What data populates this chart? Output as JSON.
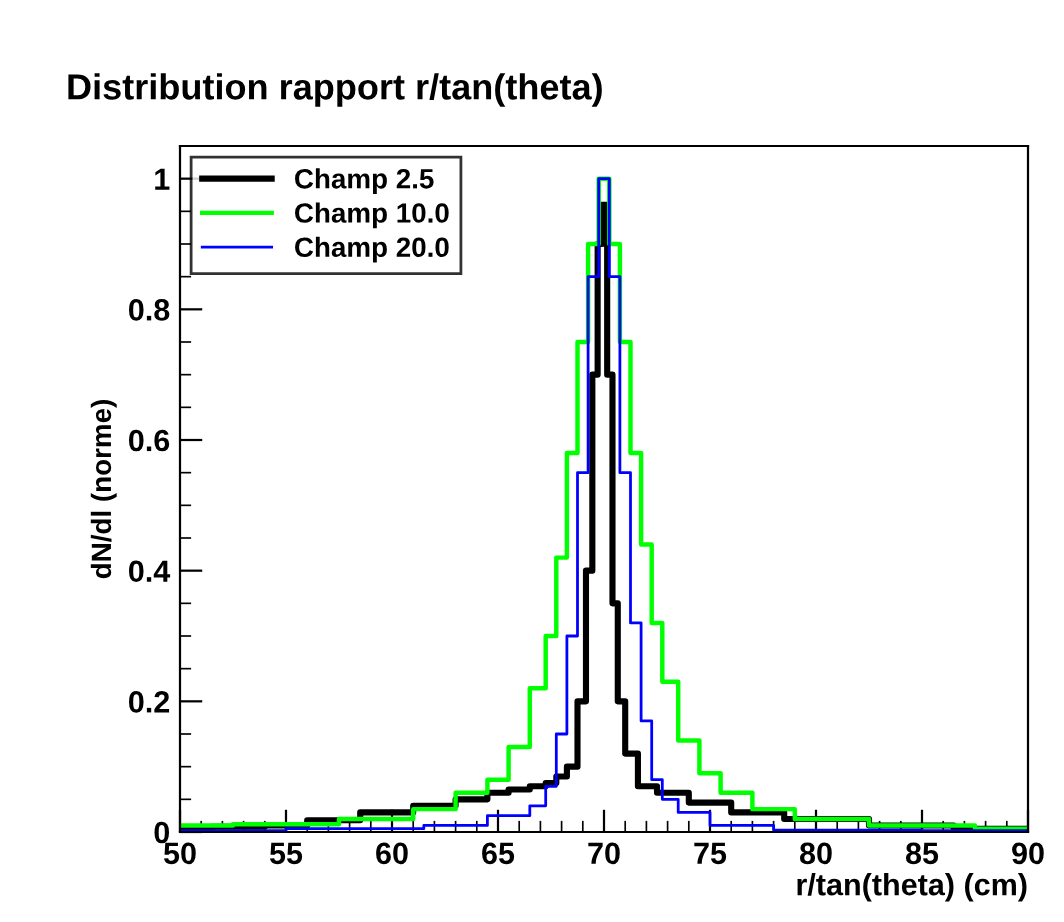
{
  "chart_data": {
    "type": "step",
    "title": "Distribution rapport r/tan(theta)",
    "xlabel": "r/tan(theta) (cm)",
    "ylabel": "dN/dl (norme)",
    "xlim": [
      50,
      90
    ],
    "xticks": [
      50,
      55,
      60,
      65,
      70,
      75,
      80,
      85,
      90
    ],
    "ylim": [
      0,
      1.05
    ],
    "yticks": [
      0,
      0.2,
      0.4,
      0.6,
      0.8,
      1
    ],
    "grid": false,
    "legend": "top left",
    "series": [
      {
        "name": "Champ 2.5",
        "color": "#000000",
        "x": [
          50,
          53,
          55,
          57,
          60,
          62,
          64,
          65,
          66,
          67,
          67.5,
          68,
          68.5,
          69,
          69.3,
          69.6,
          69.8,
          70,
          70.3,
          70.5,
          70.8,
          71.2,
          72,
          73,
          75,
          77,
          80,
          85,
          88,
          90
        ],
        "values": [
          0.005,
          0.008,
          0.01,
          0.018,
          0.03,
          0.04,
          0.05,
          0.06,
          0.065,
          0.07,
          0.075,
          0.085,
          0.1,
          0.2,
          0.4,
          0.7,
          0.9,
          0.96,
          0.7,
          0.35,
          0.2,
          0.12,
          0.07,
          0.06,
          0.045,
          0.03,
          0.02,
          0.01,
          0.005,
          0.005
        ]
      },
      {
        "name": "Champ 10.0",
        "color": "#00ff00",
        "x": [
          50,
          55,
          60,
          62,
          64,
          65,
          66,
          67,
          67.5,
          68,
          68.5,
          69,
          69.5,
          70,
          70.5,
          71,
          71.5,
          72,
          72.5,
          73,
          74,
          75,
          76,
          78,
          80,
          85,
          90
        ],
        "values": [
          0.01,
          0.012,
          0.02,
          0.035,
          0.06,
          0.08,
          0.13,
          0.22,
          0.3,
          0.42,
          0.58,
          0.75,
          0.9,
          1.0,
          0.9,
          0.75,
          0.58,
          0.44,
          0.32,
          0.23,
          0.14,
          0.09,
          0.06,
          0.035,
          0.02,
          0.01,
          0.005
        ]
      },
      {
        "name": "Champ 20.0",
        "color": "#0000ff",
        "x": [
          50,
          60,
          63,
          66,
          67,
          67.5,
          68,
          68.5,
          69,
          69.5,
          70,
          70.5,
          71,
          71.5,
          72,
          72.5,
          73,
          74,
          76,
          80,
          90
        ],
        "values": [
          0.002,
          0.005,
          0.01,
          0.025,
          0.04,
          0.07,
          0.15,
          0.3,
          0.55,
          0.85,
          1.0,
          0.85,
          0.55,
          0.32,
          0.17,
          0.08,
          0.05,
          0.03,
          0.01,
          0.003,
          0.002
        ]
      }
    ]
  }
}
